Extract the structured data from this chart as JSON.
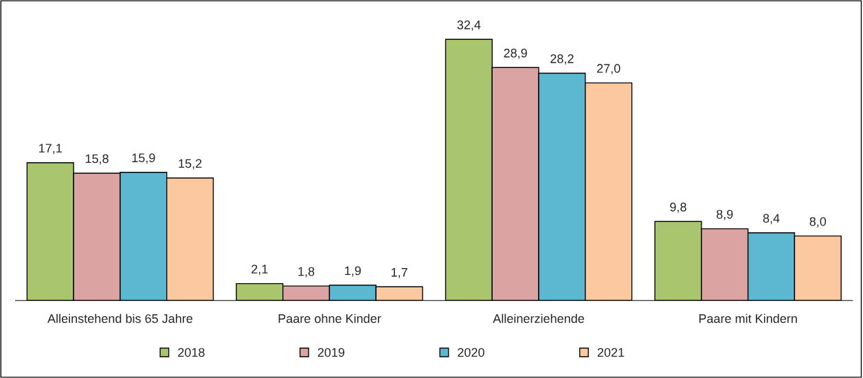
{
  "chart_data": {
    "type": "bar",
    "categories": [
      "Alleinstehend bis 65 Jahre",
      "Paare ohne Kinder",
      "Alleinerziehende",
      "Paare mit Kindern"
    ],
    "series": [
      {
        "name": "2018",
        "color": "#a9c66e",
        "values": [
          17.1,
          2.1,
          32.4,
          9.8
        ],
        "value_labels": [
          "17,1",
          "2,1",
          "32,4",
          "9,8"
        ]
      },
      {
        "name": "2019",
        "color": "#dba3a1",
        "values": [
          15.8,
          1.8,
          28.9,
          8.9
        ],
        "value_labels": [
          "15,8",
          "1,8",
          "28,9",
          "8,9"
        ]
      },
      {
        "name": "2020",
        "color": "#5cb8d0",
        "values": [
          15.9,
          1.9,
          28.2,
          8.4
        ],
        "value_labels": [
          "15,9",
          "1,9",
          "28,2",
          "8,4"
        ]
      },
      {
        "name": "2021",
        "color": "#fcc8a0",
        "values": [
          15.2,
          1.7,
          27.0,
          8.0
        ],
        "value_labels": [
          "15,2",
          "1,7",
          "27,0",
          "8,0"
        ]
      }
    ],
    "legend": "bottom",
    "grid": false,
    "tick_labels": "x"
  }
}
